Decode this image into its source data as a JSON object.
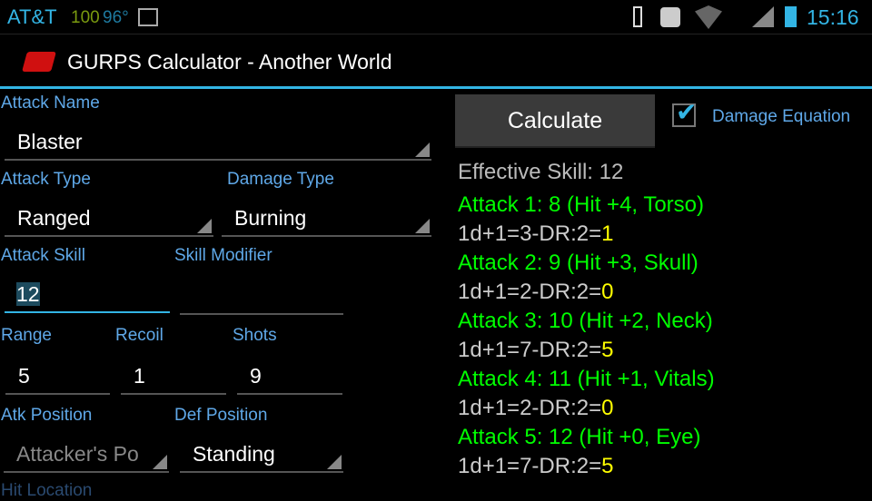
{
  "status_bar": {
    "carrier": "AT&T",
    "battery_small": "100",
    "temperature": "96°",
    "time": "15:16",
    "icons": [
      "image-icon",
      "vibrate-icon",
      "alarm-icon",
      "wifi-icon",
      "signal-icon",
      "battery-icon"
    ]
  },
  "app": {
    "title": "GURPS Calculator - Another World",
    "icon": "dice-icon"
  },
  "form": {
    "attack_name": {
      "label": "Attack Name",
      "value": "Blaster"
    },
    "attack_type": {
      "label": "Attack Type",
      "value": "Ranged"
    },
    "damage_type": {
      "label": "Damage Type",
      "value": "Burning"
    },
    "attack_skill": {
      "label": "Attack Skill",
      "value": "12"
    },
    "skill_modifier": {
      "label": "Skill Modifier",
      "value": ""
    },
    "range": {
      "label": "Range",
      "value": "5"
    },
    "recoil": {
      "label": "Recoil",
      "value": "1"
    },
    "shots": {
      "label": "Shots",
      "value": "9"
    },
    "atk_position": {
      "label": "Atk Position",
      "placeholder": "Attacker's Po"
    },
    "def_position": {
      "label": "Def Position",
      "value": "Standing"
    },
    "hit_location": {
      "label": "Hit Location"
    }
  },
  "calculate_label": "Calculate",
  "damage_equation": {
    "label": "Damage Equation",
    "checked": true
  },
  "effective_skill": "Effective Skill: 12",
  "attacks": [
    {
      "title": "Attack 1: 8 (Hit +4, Torso)",
      "equation": "1d+1=3-DR:2=",
      "result": "1"
    },
    {
      "title": "Attack 2: 9 (Hit +3, Skull)",
      "equation": "1d+1=2-DR:2=",
      "result": "0"
    },
    {
      "title": "Attack 3: 10 (Hit +2, Neck)",
      "equation": "1d+1=7-DR:2=",
      "result": "5"
    },
    {
      "title": "Attack 4: 11 (Hit +1, Vitals)",
      "equation": "1d+1=2-DR:2=",
      "result": "0"
    },
    {
      "title": "Attack 5: 12 (Hit +0, Eye)",
      "equation": "1d+1=7-DR:2=",
      "result": "5"
    }
  ],
  "colors": {
    "accent": "#33b5e5",
    "hit": "#00ff00",
    "damage": "#ffff00"
  }
}
